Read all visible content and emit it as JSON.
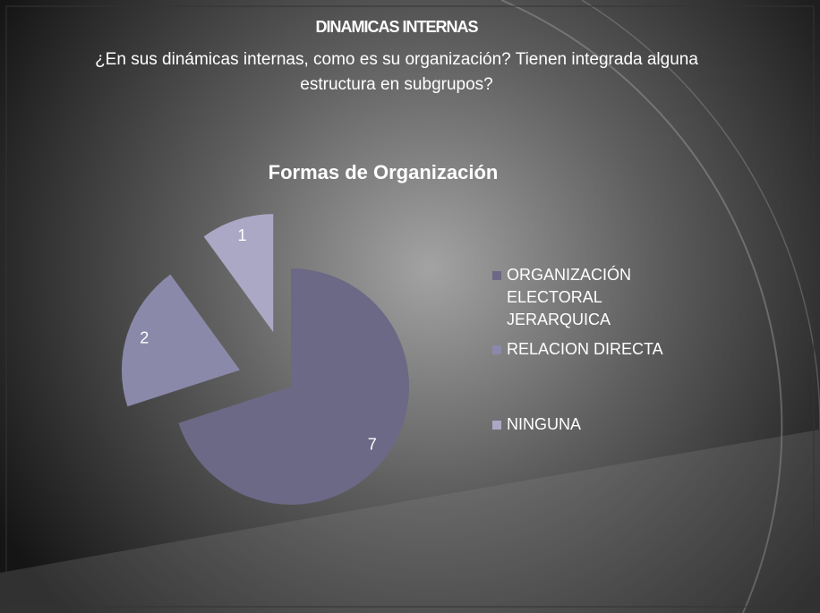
{
  "header": {
    "title": "DINAMICAS INTERNAS",
    "subtitle": "¿En sus dinámicas internas, como es su organización? Tienen integrada alguna estructura en subgrupos?"
  },
  "chart_data": {
    "type": "pie",
    "title": "Formas de Organización",
    "categories": [
      "ORGANIZACIÓN ELECTORAL JERARQUICA",
      "RELACION DIRECTA",
      "NINGUNA"
    ],
    "values": [
      7,
      2,
      1
    ],
    "colors": [
      "#6b6985",
      "#8b89a9",
      "#aaa8c4"
    ],
    "legend": "right"
  }
}
